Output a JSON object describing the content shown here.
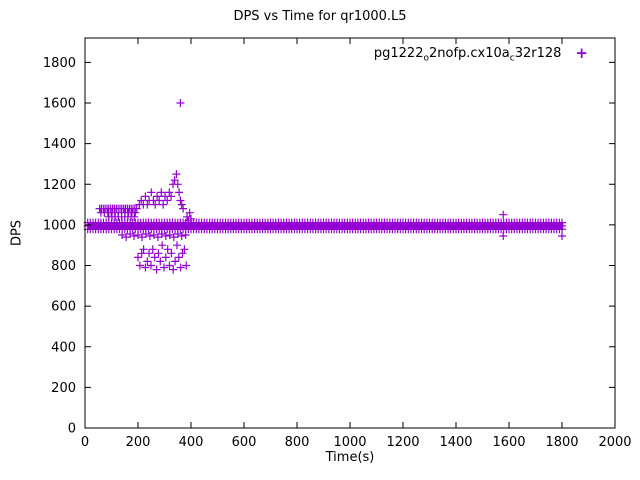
{
  "window": {
    "title": "DPS vs Time for qr1000.L5"
  },
  "chart_data": {
    "type": "scatter",
    "title": "DPS vs Time for qr1000.L5",
    "xlabel": "Time(s)",
    "ylabel": "DPS",
    "xlim": [
      0,
      2000
    ],
    "ylim": [
      0,
      1920
    ],
    "x_ticks": [
      0,
      200,
      400,
      600,
      800,
      1000,
      1200,
      1400,
      1600,
      1800,
      2000
    ],
    "y_ticks": [
      0,
      200,
      400,
      600,
      800,
      1000,
      1200,
      1400,
      1600,
      1800
    ],
    "grid": false,
    "legend_position": "top-right-inside",
    "axis_color": "#000000",
    "series": [
      {
        "name": "pg1222_o2nofp.cx10a_c32r128",
        "name_parts": {
          "p1": "pg1222",
          "s1": "o",
          "p2": "2nofp.cx10a",
          "s2": "c",
          "p3": "32r128"
        },
        "marker": "+",
        "color": "#9400d3",
        "band": {
          "description": "dense horizontal band of points at steady-state throughput",
          "x_start": 10,
          "x_end": 1805,
          "y_low": 975,
          "y_high": 1012,
          "marker_step": 10,
          "marker_ys": [
            978,
            995,
            1011
          ]
        },
        "points": [
          [
            55,
            1080
          ],
          [
            62,
            1080
          ],
          [
            69,
            1080
          ],
          [
            76,
            1080
          ],
          [
            83,
            1080
          ],
          [
            90,
            1080
          ],
          [
            97,
            1080
          ],
          [
            104,
            1080
          ],
          [
            111,
            1080
          ],
          [
            118,
            1080
          ],
          [
            125,
            1080
          ],
          [
            132,
            1080
          ],
          [
            139,
            1080
          ],
          [
            146,
            1080
          ],
          [
            153,
            1080
          ],
          [
            160,
            1080
          ],
          [
            167,
            1080
          ],
          [
            174,
            1080
          ],
          [
            181,
            1080
          ],
          [
            188,
            1080
          ],
          [
            195,
            1080
          ],
          [
            60,
            1060
          ],
          [
            73,
            1060
          ],
          [
            86,
            1060
          ],
          [
            99,
            1060
          ],
          [
            112,
            1060
          ],
          [
            125,
            1060
          ],
          [
            138,
            1060
          ],
          [
            151,
            1060
          ],
          [
            164,
            1060
          ],
          [
            177,
            1060
          ],
          [
            190,
            1060
          ],
          [
            90,
            1040
          ],
          [
            102,
            1040
          ],
          [
            114,
            1040
          ],
          [
            126,
            1040
          ],
          [
            138,
            1040
          ],
          [
            150,
            1040
          ],
          [
            162,
            1040
          ],
          [
            174,
            1040
          ],
          [
            186,
            1040
          ],
          [
            205,
            1100
          ],
          [
            212,
            1120
          ],
          [
            220,
            1100
          ],
          [
            228,
            1140
          ],
          [
            235,
            1100
          ],
          [
            242,
            1120
          ],
          [
            250,
            1160
          ],
          [
            258,
            1120
          ],
          [
            265,
            1100
          ],
          [
            272,
            1140
          ],
          [
            280,
            1120
          ],
          [
            288,
            1160
          ],
          [
            295,
            1100
          ],
          [
            302,
            1140
          ],
          [
            310,
            1120
          ],
          [
            318,
            1160
          ],
          [
            325,
            1140
          ],
          [
            332,
            1200
          ],
          [
            338,
            1220
          ],
          [
            345,
            1250
          ],
          [
            350,
            1200
          ],
          [
            355,
            1160
          ],
          [
            360,
            1120
          ],
          [
            365,
            1100
          ],
          [
            370,
            1080
          ],
          [
            360,
            1600
          ],
          [
            140,
            950
          ],
          [
            155,
            940
          ],
          [
            170,
            955
          ],
          [
            185,
            945
          ],
          [
            200,
            950
          ],
          [
            215,
            940
          ],
          [
            230,
            955
          ],
          [
            245,
            945
          ],
          [
            260,
            950
          ],
          [
            275,
            940
          ],
          [
            290,
            955
          ],
          [
            305,
            945
          ],
          [
            320,
            950
          ],
          [
            335,
            940
          ],
          [
            350,
            955
          ],
          [
            365,
            945
          ],
          [
            380,
            950
          ],
          [
            200,
            840
          ],
          [
            207,
            800
          ],
          [
            214,
            860
          ],
          [
            221,
            880
          ],
          [
            228,
            790
          ],
          [
            235,
            820
          ],
          [
            242,
            860
          ],
          [
            249,
            800
          ],
          [
            256,
            880
          ],
          [
            263,
            840
          ],
          [
            270,
            780
          ],
          [
            277,
            860
          ],
          [
            284,
            820
          ],
          [
            291,
            900
          ],
          [
            298,
            790
          ],
          [
            305,
            840
          ],
          [
            312,
            880
          ],
          [
            319,
            800
          ],
          [
            326,
            860
          ],
          [
            333,
            780
          ],
          [
            340,
            820
          ],
          [
            347,
            900
          ],
          [
            354,
            840
          ],
          [
            361,
            790
          ],
          [
            368,
            860
          ],
          [
            375,
            880
          ],
          [
            382,
            800
          ],
          [
            385,
            1040
          ],
          [
            390,
            1020
          ],
          [
            395,
            1060
          ],
          [
            400,
            1030
          ],
          [
            1578,
            1050
          ],
          [
            1578,
            945
          ],
          [
            1800,
            945
          ]
        ]
      }
    ]
  }
}
